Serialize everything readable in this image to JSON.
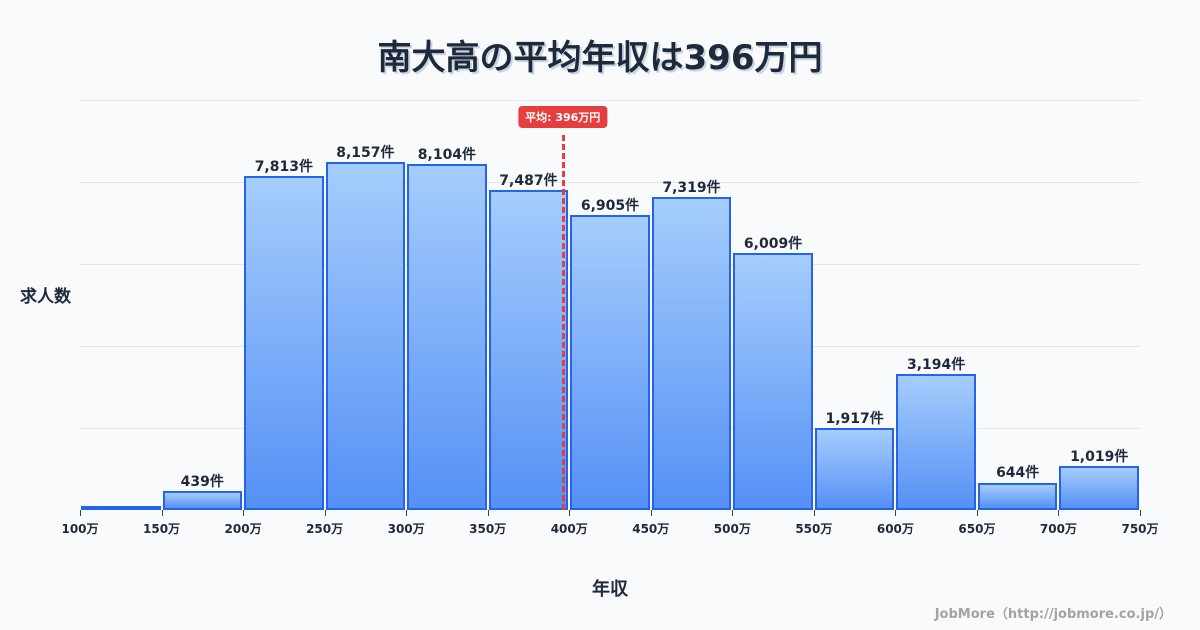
{
  "title": "南大高の平均年収は396万円",
  "axis": {
    "y_label": "求人数",
    "x_label": "年収"
  },
  "average_badge": "平均: 396万円",
  "footer": "JobMore（http://jobmore.co.jp/）",
  "colors": {
    "bar_border": "#2563eb",
    "bar_top": "#a5cdfc",
    "bar_bottom": "#5590f5",
    "average_line": "#e53e3e",
    "title": "#1e293b"
  },
  "chart_data": {
    "type": "bar",
    "title": "南大高の平均年収は396万円",
    "xlabel": "年収",
    "ylabel": "求人数",
    "tick_labels": [
      "100万",
      "150万",
      "200万",
      "250万",
      "300万",
      "350万",
      "400万",
      "450万",
      "500万",
      "550万",
      "600万",
      "650万",
      "700万",
      "750万"
    ],
    "categories": [
      "100-150万",
      "150-200万",
      "200-250万",
      "250-300万",
      "300-350万",
      "350-400万",
      "400-450万",
      "450-500万",
      "500-550万",
      "550-600万",
      "600-650万",
      "650-700万",
      "700-750万"
    ],
    "values": [
      0,
      439,
      7813,
      8157,
      8104,
      7487,
      6905,
      7319,
      6009,
      1917,
      3194,
      644,
      1019
    ],
    "value_labels": [
      "",
      "439件",
      "7,813件",
      "8,157件",
      "8,104件",
      "7,487件",
      "6,905件",
      "7,319件",
      "6,009件",
      "1,917件",
      "3,194件",
      "644件",
      "1,019件"
    ],
    "average": 396,
    "average_label": "平均: 396万円",
    "ylim": [
      0,
      9600
    ],
    "grid": true,
    "legend": "none"
  }
}
